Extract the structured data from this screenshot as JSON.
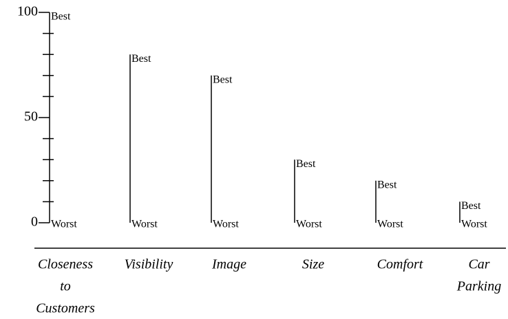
{
  "chart_data": {
    "type": "range_scale",
    "categories": [
      [
        "Closeness",
        "to",
        "Customers"
      ],
      [
        "Visibility"
      ],
      [
        "Image"
      ],
      [
        "Size"
      ],
      [
        "Comfort"
      ],
      [
        "Car",
        "Parking"
      ]
    ],
    "values": [
      100,
      80,
      70,
      30,
      20,
      10
    ],
    "top_label": "Best",
    "bottom_label": "Worst",
    "ylim": [
      0,
      100
    ],
    "yticks": [
      0,
      50,
      100
    ],
    "yminor_ticks": [
      10,
      20,
      30,
      40,
      60,
      70,
      80,
      90
    ],
    "color": "#000000"
  }
}
